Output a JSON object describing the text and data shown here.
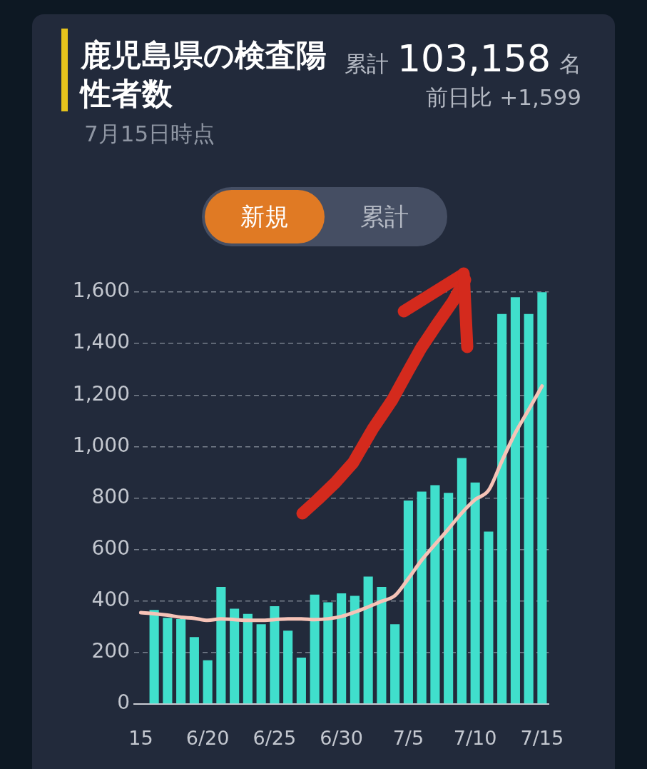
{
  "chart_data": {
    "type": "bar",
    "title": "鹿児島県の検査陽性者数",
    "subtitle": "7月15日時点",
    "annotations": [
      "累計",
      "103,158",
      "名",
      "前日比 +1,599",
      "新規",
      "累計"
    ],
    "categories": [
      "15",
      null,
      null,
      null,
      null,
      "6/20",
      null,
      null,
      null,
      null,
      "6/25",
      null,
      null,
      null,
      null,
      "6/30",
      null,
      null,
      null,
      null,
      "7/5",
      null,
      null,
      null,
      null,
      "7/10",
      null,
      null,
      null,
      null,
      "7/15"
    ],
    "series": [
      {
        "color": "#40dfcc",
        "values": [
          null,
          365,
          335,
          330,
          260,
          170,
          455,
          370,
          350,
          310,
          380,
          285,
          180,
          425,
          395,
          430,
          420,
          495,
          455,
          310,
          790,
          825,
          850,
          820,
          955,
          860,
          670,
          1515,
          1580,
          1515,
          1599
        ]
      },
      {
        "type": "line",
        "color": "#f6c3b7",
        "marker": "none",
        "values": [
          355,
          351,
          345,
          337,
          333,
          325,
          331,
          328,
          325,
          325,
          328,
          331,
          331,
          328,
          331,
          340,
          357,
          377,
          399,
          421,
          487,
          559,
          620,
          680,
          742,
          794,
          830,
          944,
          1053,
          1143,
          1235
        ]
      }
    ],
    "ylim": [
      0,
      1600
    ],
    "yticks": [
      0,
      200,
      400,
      600,
      800,
      {
        "value": 1000,
        "label": "1,000"
      },
      {
        "value": 1200,
        "label": "1,200"
      },
      {
        "value": 1400,
        "label": "1,400"
      },
      {
        "value": 1600,
        "label": "1,600"
      }
    ],
    "grid": "y",
    "legend": false
  }
}
